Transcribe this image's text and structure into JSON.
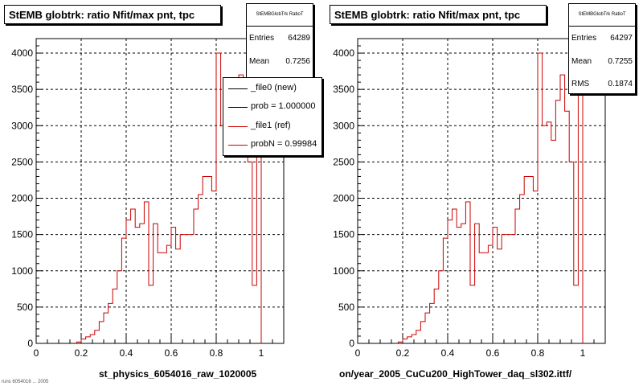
{
  "chart_data": [
    {
      "type": "histogram",
      "title": "StEMB globtrk: ratio Nfit/max pnt, tpc",
      "xlabel": "st_physics_6054016_raw_1020005",
      "ylabel": "",
      "xlim": [
        0,
        1.1
      ],
      "ylim": [
        0,
        4200
      ],
      "xticks": [
        "0",
        "0.2",
        "0.4",
        "0.6",
        "0.8",
        "1"
      ],
      "yticks": [
        "0",
        "500",
        "1000",
        "1500",
        "2000",
        "2500",
        "3000",
        "3500",
        "4000"
      ],
      "grid": true,
      "bin_width": 0.02,
      "stats": {
        "name": "StEMBGlobTrk RatioT",
        "rows": [
          {
            "key": "Entries",
            "value": "64289"
          },
          {
            "key": "Mean",
            "value": "0.7256"
          }
        ]
      },
      "legend": {
        "placement": "top-right",
        "entries": [
          {
            "label": "_file0 (new)",
            "color": "#000000"
          },
          {
            "label": "prob = 1.000000",
            "color": "#000000"
          },
          {
            "label": "_file1 (ref)",
            "color": "#cc0000"
          },
          {
            "label": "probN = 0.99984",
            "color": "#cc0000"
          }
        ]
      },
      "series": [
        {
          "name": "_file1 (ref)",
          "color": "#cc0000",
          "x": [
            0.18,
            0.2,
            0.22,
            0.24,
            0.26,
            0.28,
            0.3,
            0.32,
            0.34,
            0.36,
            0.38,
            0.4,
            0.42,
            0.44,
            0.46,
            0.48,
            0.5,
            0.52,
            0.54,
            0.56,
            0.58,
            0.6,
            0.62,
            0.64,
            0.66,
            0.68,
            0.7,
            0.72,
            0.74,
            0.76,
            0.78,
            0.8,
            0.82,
            0.84,
            0.86,
            0.88,
            0.9,
            0.92,
            0.94,
            0.96,
            0.98
          ],
          "values": [
            20,
            60,
            90,
            120,
            180,
            300,
            420,
            550,
            750,
            1000,
            1450,
            1700,
            1850,
            1600,
            1650,
            1950,
            800,
            1650,
            1250,
            1250,
            1350,
            1600,
            1300,
            1500,
            1500,
            1500,
            1850,
            2050,
            2300,
            2300,
            2100,
            4000,
            3000,
            3050,
            2800,
            3350,
            3700,
            3200,
            2500,
            800,
            4000
          ]
        }
      ]
    },
    {
      "type": "histogram",
      "title": "StEMB globtrk: ratio Nfit/max pnt, tpc",
      "xlabel": "on/year_2005_CuCu200_HighTower_daq_sl302.ittf/",
      "ylabel": "",
      "xlim": [
        0,
        1.1
      ],
      "ylim": [
        0,
        4200
      ],
      "xticks": [
        "0",
        "0.2",
        "0.4",
        "0.6",
        "0.8",
        "1"
      ],
      "yticks": [
        "0",
        "500",
        "1000",
        "1500",
        "2000",
        "2500",
        "3000",
        "3500",
        "4000"
      ],
      "grid": true,
      "bin_width": 0.02,
      "stats": {
        "name": "StEMBGlobTrk RatioT",
        "rows": [
          {
            "key": "Entries",
            "value": "64297"
          },
          {
            "key": "Mean",
            "value": "0.7255"
          },
          {
            "key": "RMS",
            "value": "0.1874"
          }
        ]
      },
      "series": [
        {
          "name": "",
          "color": "#cc0000",
          "x": [
            0.18,
            0.2,
            0.22,
            0.24,
            0.26,
            0.28,
            0.3,
            0.32,
            0.34,
            0.36,
            0.38,
            0.4,
            0.42,
            0.44,
            0.46,
            0.48,
            0.5,
            0.52,
            0.54,
            0.56,
            0.58,
            0.6,
            0.62,
            0.64,
            0.66,
            0.68,
            0.7,
            0.72,
            0.74,
            0.76,
            0.78,
            0.8,
            0.82,
            0.84,
            0.86,
            0.88,
            0.9,
            0.92,
            0.94,
            0.96,
            0.98
          ],
          "values": [
            20,
            60,
            90,
            120,
            180,
            300,
            420,
            550,
            750,
            1000,
            1450,
            1700,
            1850,
            1600,
            1650,
            1950,
            800,
            1650,
            1250,
            1250,
            1350,
            1600,
            1300,
            1500,
            1500,
            1500,
            1850,
            2050,
            2300,
            2300,
            2100,
            4000,
            3000,
            3050,
            2800,
            3350,
            3700,
            3200,
            2500,
            800,
            4000
          ]
        }
      ]
    }
  ],
  "footer": {
    "left_note": "runs 6054016 ... 2005"
  }
}
